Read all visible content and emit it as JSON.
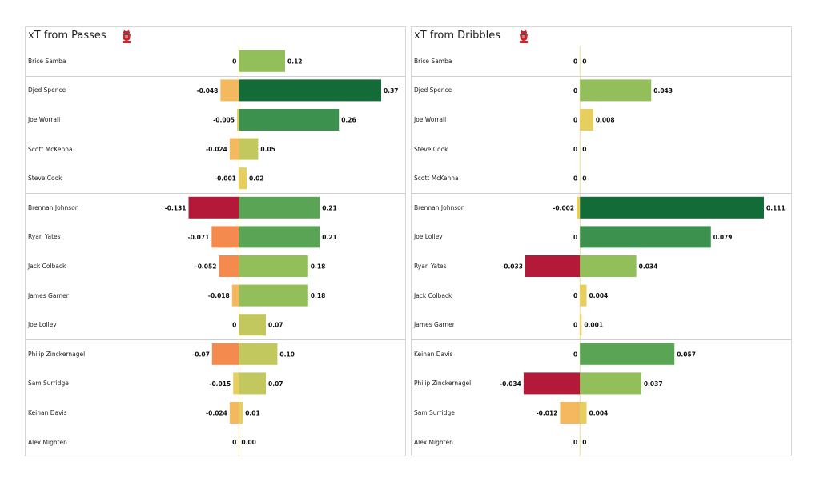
{
  "colors": {
    "scale": [
      "#b5193a",
      "#e8664a",
      "#f48a4d",
      "#f4b85e",
      "#e6cf5e",
      "#c3c85e",
      "#93bf5a",
      "#5aa555",
      "#3c914f",
      "#136b37"
    ],
    "panel_border": "#d6d6d6",
    "separator": "#cfcfcf",
    "crest": "#d0202a"
  },
  "chart_data": [
    {
      "type": "bar",
      "orientation": "horizontal-diverging",
      "title": "xT from Passes",
      "crest_icon": "nottingham-forest-crest-icon",
      "categories": [
        "Brice Samba",
        "Djed Spence",
        "Joe Worrall",
        "Scott McKenna",
        "Steve Cook",
        "Brennan Johnson",
        "Ryan Yates",
        "Jack Colback",
        "James Garner",
        "Joe Lolley",
        "Philip Zinckernagel",
        "Sam Surridge",
        "Keinan Davis",
        "Alex Mighten"
      ],
      "groups": [
        1,
        4,
        5,
        4
      ],
      "series": [
        {
          "values": [
            0,
            -0.048,
            -0.005,
            -0.024,
            -0.001,
            -0.131,
            -0.071,
            -0.052,
            -0.018,
            0,
            -0.07,
            -0.015,
            -0.024,
            0
          ],
          "labels": [
            "0",
            "-0.048",
            "-0.005",
            "-0.024",
            "-0.001",
            "-0.131",
            "-0.071",
            "-0.052",
            "-0.018",
            "0",
            "-0.07",
            "-0.015",
            "-0.024",
            "0"
          ]
        },
        {
          "values": [
            0.12,
            0.37,
            0.26,
            0.05,
            0.02,
            0.21,
            0.21,
            0.18,
            0.18,
            0.07,
            0.1,
            0.07,
            0.01,
            0.0
          ],
          "labels": [
            "0.12",
            "0.37",
            "0.26",
            "0.05",
            "0.02",
            "0.21",
            "0.21",
            "0.18",
            "0.18",
            "0.07",
            "0.10",
            "0.07",
            "0.01",
            "0.00"
          ]
        }
      ],
      "xlim": [
        -0.38,
        0.37
      ]
    },
    {
      "type": "bar",
      "orientation": "horizontal-diverging",
      "title": "xT from Dribbles",
      "crest_icon": "nottingham-forest-crest-icon",
      "categories": [
        "Brice Samba",
        "Djed Spence",
        "Joe Worrall",
        "Steve Cook",
        "Scott McKenna",
        "Brennan Johnson",
        "Joe Lolley",
        "Ryan Yates",
        "Jack Colback",
        "James Garner",
        "Keinan Davis",
        "Philip Zinckernagel",
        "Sam Surridge",
        "Alex Mighten"
      ],
      "groups": [
        1,
        4,
        5,
        4
      ],
      "series": [
        {
          "values": [
            0,
            0,
            0,
            0,
            0,
            -0.002,
            0,
            -0.033,
            0,
            0,
            0,
            -0.034,
            -0.012,
            0
          ],
          "labels": [
            "0",
            "0",
            "0",
            "0",
            "0",
            "-0.002",
            "0",
            "-0.033",
            "0",
            "0",
            "0",
            "-0.034",
            "-0.012",
            "0"
          ]
        },
        {
          "values": [
            0,
            0.043,
            0.008,
            0,
            0,
            0.111,
            0.079,
            0.034,
            0.004,
            0.001,
            0.057,
            0.037,
            0.004,
            0
          ],
          "labels": [
            "0",
            "0.043",
            "0.008",
            "0",
            "0",
            "0.111",
            "0.079",
            "0.034",
            "0.004",
            "0.001",
            "0.057",
            "0.037",
            "0.004",
            "0"
          ]
        }
      ],
      "xlim": [
        -0.061,
        0.111
      ]
    }
  ]
}
